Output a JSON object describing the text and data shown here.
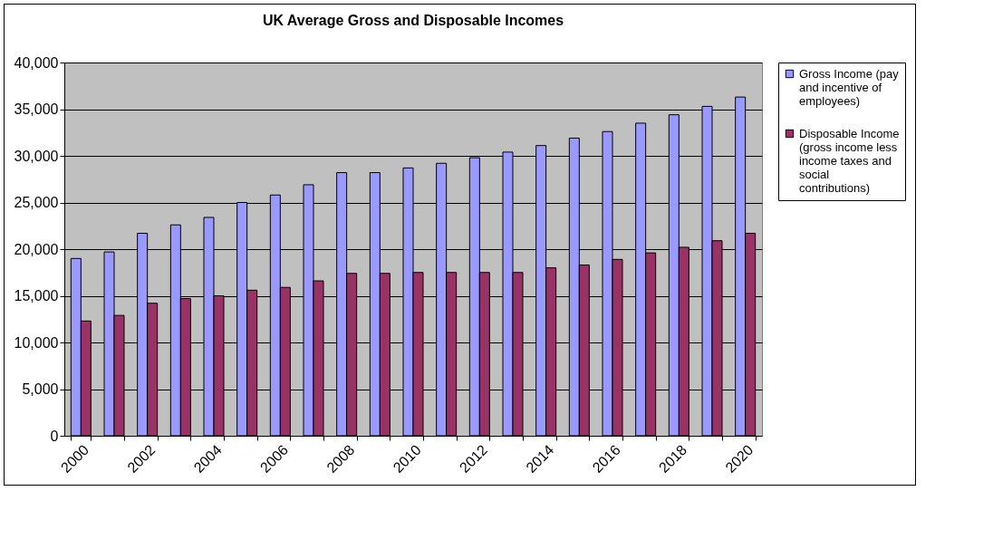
{
  "chart_data": {
    "type": "bar",
    "title": "UK Average Gross and Disposable Incomes",
    "categories": [
      "2000",
      null,
      "2002",
      null,
      "2004",
      null,
      "2006",
      null,
      "2008",
      null,
      "2010",
      null,
      "2012",
      null,
      "2014",
      null,
      "2016",
      null,
      "2018",
      null,
      "2020"
    ],
    "series": [
      {
        "name": "Gross Income (pay and incentive of employees)",
        "color": "#9999ff",
        "values": [
          19000,
          19700,
          21700,
          22600,
          23400,
          25000,
          25800,
          26900,
          28200,
          28200,
          28700,
          29200,
          29800,
          30400,
          31100,
          31900,
          32600,
          33500,
          34400,
          35300,
          36300
        ]
      },
      {
        "name": "Disposable Income (gross income less income taxes and social contributions)",
        "color": "#993366",
        "values": [
          12300,
          12900,
          14200,
          14700,
          15000,
          15600,
          15900,
          16600,
          17400,
          17400,
          17500,
          17500,
          17500,
          17500,
          18000,
          18300,
          18900,
          19600,
          20200,
          20900,
          21700
        ]
      }
    ],
    "ylim": [
      0,
      40000
    ],
    "yticks": [
      {
        "value": 0,
        "label": "0"
      },
      {
        "value": 5000,
        "label": "5,000"
      },
      {
        "value": 10000,
        "label": "10,000"
      },
      {
        "value": 15000,
        "label": "15,000"
      },
      {
        "value": 20000,
        "label": "20,000"
      },
      {
        "value": 25000,
        "label": "25,000"
      },
      {
        "value": 30000,
        "label": "30,000"
      },
      {
        "value": 35000,
        "label": "35,000"
      },
      {
        "value": 40000,
        "label": "40,000"
      }
    ],
    "grid": "y",
    "legend": "right"
  }
}
